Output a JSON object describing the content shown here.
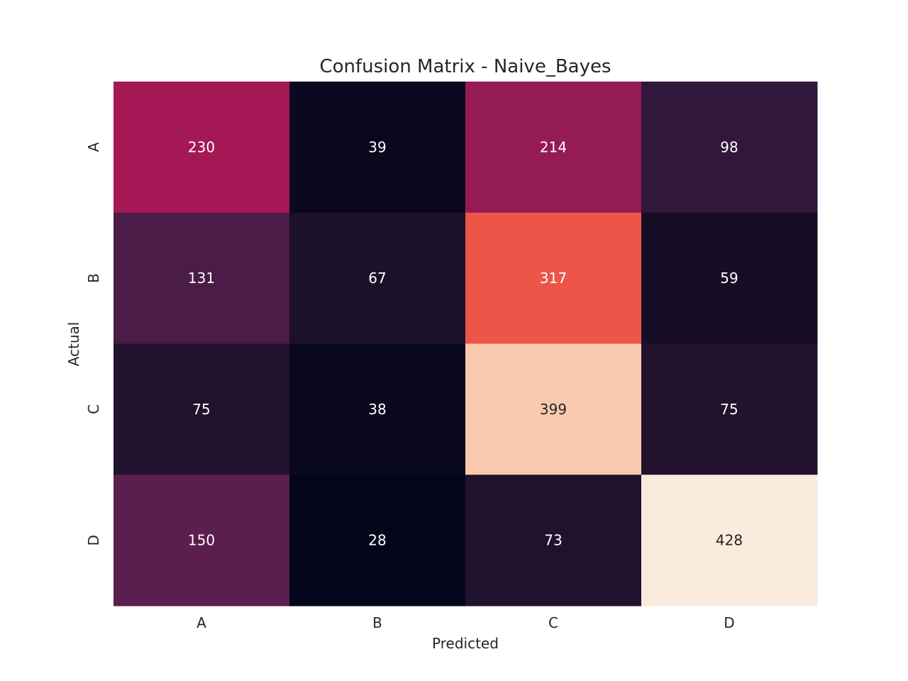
{
  "chart_data": {
    "type": "heatmap",
    "title": "Confusion Matrix - Naive_Bayes",
    "xlabel": "Predicted",
    "ylabel": "Actual",
    "x_categories": [
      "A",
      "B",
      "C",
      "D"
    ],
    "y_categories": [
      "A",
      "B",
      "C",
      "D"
    ],
    "values": [
      [
        230,
        39,
        214,
        98
      ],
      [
        131,
        67,
        317,
        59
      ],
      [
        75,
        38,
        399,
        75
      ],
      [
        150,
        28,
        73,
        428
      ]
    ],
    "colormap": "rocket",
    "color_range": [
      28,
      428
    ],
    "colorbar": false,
    "annotations": true,
    "grid": false
  }
}
